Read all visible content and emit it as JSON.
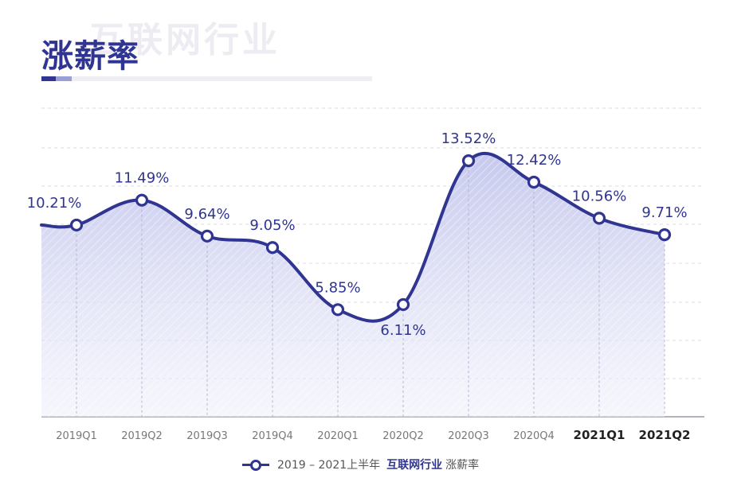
{
  "header": {
    "title": "涨薪率",
    "watermark": "互联网行业"
  },
  "legend": {
    "prefix": "2019 – 2021上半年",
    "highlight": "互联网行业",
    "suffix": "涨薪率"
  },
  "colors": {
    "accent": "#2f3590",
    "accent_light": "#9aa0d6",
    "area_fill": "#c9cbee",
    "grid": "#dcdce6",
    "tick_text": "#777777"
  },
  "chart_data": {
    "type": "area",
    "title": "涨薪率",
    "xlabel": "",
    "ylabel": "",
    "categories": [
      "2019Q1",
      "2019Q2",
      "2019Q3",
      "2019Q4",
      "2020Q1",
      "2020Q2",
      "2020Q3",
      "2020Q4",
      "2021Q1",
      "2021Q2"
    ],
    "bold_categories": [
      "2021Q1",
      "2021Q2"
    ],
    "series": [
      {
        "name": "2019 – 2021上半年 互联网行业 涨薪率",
        "values": [
          10.21,
          11.49,
          9.64,
          9.05,
          5.85,
          6.11,
          13.52,
          12.42,
          10.56,
          9.71
        ],
        "labels": [
          "10.21%",
          "11.49%",
          "9.64%",
          "9.05%",
          "5.85%",
          "6.11%",
          "13.52%",
          "12.42%",
          "10.56%",
          "9.71%"
        ]
      }
    ],
    "ylim": [
      0,
      15
    ],
    "grid": true,
    "smooth": true,
    "legend_position": "bottom-center"
  }
}
